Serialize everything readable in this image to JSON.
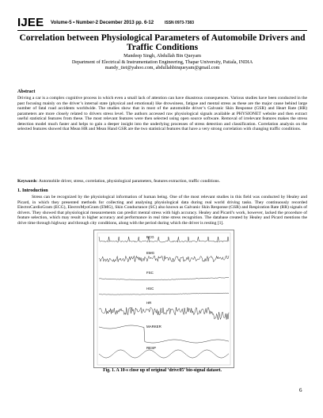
{
  "header": {
    "journal": "IJEE",
    "volume_line": "Volume-5 • Number-2 December 2013 pp. 6-12",
    "issn": "ISSN 0973-7383"
  },
  "title": "Correlation between Physiological Parameters of Automobile Drivers and Traffic Conditions",
  "authors": {
    "names": "Mandeep Singh, Abdullah Bin Queyam",
    "affiliation": "Department of Electrical & Instrumentation Engineering, Thapar University, Patiala, INDIA",
    "emails": "mandy_tiet@yahoo.com, abdullahbinqueyam@gmail.com"
  },
  "abstract": {
    "heading": "Abstract",
    "text": "Driving a car is a complex cognitive process in which even a small lack of attention can have disastrous consequences. Various studies have been conducted in the past focusing mainly on the driver’s internal state (physical and emotional) like drowsiness, fatigue and mental stress as these are the major cause behind large number of fatal road accidents worldwide. The studies show that in most of the automobile driver’s Galvanic Skin Response (GSR) and Heart Rate (HR) parameters are more closely related to drivers stress level. The authors accessed raw physiological signals available at PHYSIONET website and then extract useful statistical features from these. The most relevant features were then selected using open source software. Removal of irrelevant features makes the stress detection model much faster and helps to gain a deeper insight into the underlying processes of stress detection and classification. Correlation analysis on the selected features showed that Mean HR and Mean Hand GSR are the two statistical features that have a very strong correlation with changing traffic conditions.",
    "keywords_label": "Keywords",
    "keywords_text": ": Automobile driver, stress, correlation, physiological parameters, features extraction, traffic conditions."
  },
  "intro": {
    "heading": "1.   Introduction",
    "text": "Stress can be recognized by the physiological information of human being. One of the most relevant studies in this field was conducted by Healey and Picard, in which they presented methods for collecting and analysing physiological data during real world driving tasks. They continuously recorded ElectroCardioGram (ECG), ElectroMyoGram (EMG), Skin Conductance (SC) also known as Galvanic Skin Response (GSR) and Respiration Rate (RR) signals of drivers. They showed that physiological measurements can predict mental stress with high accuracy. Healey and Picard’s work, however, lacked the procedure of feature selection, which may result in higher accuracy and performance in real time stress recognition. The database created by Healey and Picard mentions the drive time through highway and through city conditions, along with the period during which the driver is resting [1]."
  },
  "figure": {
    "signal_labels": [
      "ECG",
      "EMG",
      "FSC",
      "HSC",
      "HR",
      "MARKER",
      "RESP"
    ],
    "caption": "Fig. 1. A 10-s close up of original ‘drivc05’ bio-signal dataset."
  },
  "page_number": "6"
}
